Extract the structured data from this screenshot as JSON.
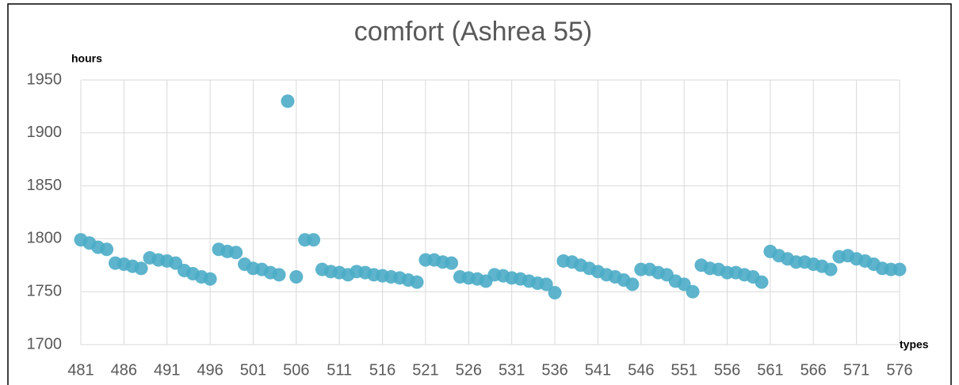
{
  "chart_data": {
    "type": "scatter",
    "title": "comfort (Ashrea 55)",
    "y_label": "hours",
    "x_label": "types",
    "x": [
      481,
      482,
      483,
      484,
      485,
      486,
      487,
      488,
      489,
      490,
      491,
      492,
      493,
      494,
      495,
      496,
      497,
      498,
      499,
      500,
      501,
      502,
      503,
      504,
      505,
      506,
      507,
      508,
      509,
      510,
      511,
      512,
      513,
      514,
      515,
      516,
      517,
      518,
      519,
      520,
      521,
      522,
      523,
      524,
      525,
      526,
      527,
      528,
      529,
      530,
      531,
      532,
      533,
      534,
      535,
      536,
      537,
      538,
      539,
      540,
      541,
      542,
      543,
      544,
      545,
      546,
      547,
      548,
      549,
      550,
      551,
      552,
      553,
      554,
      555,
      556,
      557,
      558,
      559,
      560,
      561,
      562,
      563,
      564,
      565,
      566,
      567,
      568,
      569,
      570,
      571,
      572,
      573,
      574,
      575,
      576
    ],
    "values": [
      1799,
      1796,
      1792,
      1790,
      1777,
      1776,
      1774,
      1772,
      1782,
      1780,
      1779,
      1777,
      1770,
      1767,
      1764,
      1762,
      1790,
      1788,
      1787,
      1776,
      1772,
      1771,
      1768,
      1766,
      1930,
      1764,
      1799,
      1799,
      1771,
      1769,
      1768,
      1766,
      1769,
      1768,
      1766,
      1765,
      1764,
      1763,
      1761,
      1759,
      1780,
      1780,
      1778,
      1777,
      1764,
      1763,
      1762,
      1760,
      1766,
      1765,
      1763,
      1762,
      1760,
      1758,
      1757,
      1749,
      1779,
      1778,
      1775,
      1772,
      1769,
      1766,
      1764,
      1761,
      1757,
      1771,
      1771,
      1768,
      1766,
      1760,
      1757,
      1750,
      1775,
      1772,
      1771,
      1768,
      1768,
      1766,
      1764,
      1759,
      1788,
      1784,
      1781,
      1778,
      1778,
      1776,
      1774,
      1771,
      1783,
      1784,
      1781,
      1779,
      1776,
      1772,
      1771,
      1771
    ],
    "color": "#4bacc6",
    "xlim": [
      481,
      576
    ],
    "xticks": [
      481,
      486,
      491,
      496,
      501,
      506,
      511,
      516,
      521,
      526,
      531,
      536,
      541,
      546,
      551,
      556,
      561,
      566,
      571,
      576
    ],
    "ylim": [
      1700,
      1950
    ],
    "yticks": [
      1700,
      1750,
      1800,
      1850,
      1900,
      1950
    ],
    "grid": true
  }
}
